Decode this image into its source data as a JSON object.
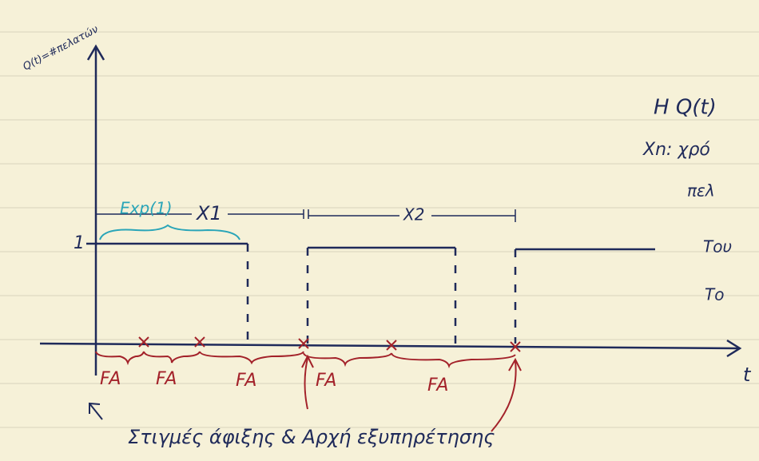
{
  "axis": {
    "y_label": "Q(t)=#πελατών",
    "x_label": "t",
    "level_label": "1"
  },
  "annotations": {
    "exp": "Exp(1)",
    "x1": "X1",
    "x2": "X2"
  },
  "fa_labels": [
    "FA",
    "FA",
    "FA",
    "FA",
    "FA"
  ],
  "caption": "Στιγμές άφιξης & Αρχή εξυπηρέτησης",
  "side_notes": [
    "H Q(t)",
    "Xn: χρό",
    "πελ",
    "Του",
    "Το"
  ]
}
